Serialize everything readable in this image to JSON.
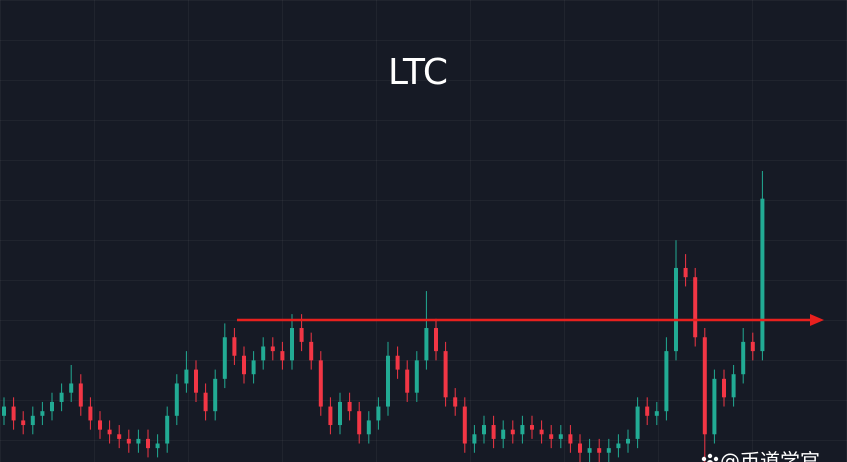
{
  "chart_data": {
    "type": "candlestick",
    "title": "LTC",
    "watermark": "@币道学官",
    "up_color": "#22ab94",
    "down_color": "#f23645",
    "ylim": [
      0,
      100
    ],
    "open": [
      10,
      12,
      9,
      8,
      10,
      11,
      13,
      15,
      17,
      12,
      9,
      7,
      6,
      5,
      4,
      5,
      3,
      4,
      10,
      17,
      20,
      15,
      11,
      18,
      27,
      23,
      19,
      22,
      25,
      24,
      22,
      29,
      26,
      22,
      12,
      8,
      13,
      11,
      6,
      9,
      12,
      23,
      20,
      15,
      22,
      29,
      24,
      14,
      12,
      4,
      6,
      8,
      5,
      7,
      6,
      8,
      7,
      6,
      5,
      6,
      4,
      2,
      3,
      2,
      3,
      4,
      5,
      12,
      10,
      11,
      24,
      42,
      40,
      27,
      6,
      18,
      14,
      19,
      26,
      24
    ],
    "high": [
      14,
      14,
      11,
      12,
      13,
      15,
      17,
      21,
      19,
      14,
      11,
      9,
      8,
      7,
      7,
      7,
      6,
      12,
      19,
      24,
      22,
      17,
      20,
      30,
      29,
      25,
      24,
      27,
      27,
      26,
      32,
      32,
      28,
      24,
      14,
      15,
      15,
      13,
      11,
      14,
      26,
      25,
      22,
      24,
      37,
      31,
      26,
      16,
      14,
      8,
      10,
      10,
      9,
      9,
      10,
      10,
      9,
      8,
      8,
      8,
      6,
      5,
      5,
      5,
      6,
      7,
      14,
      14,
      13,
      27,
      48,
      45,
      42,
      29,
      20,
      20,
      21,
      29,
      28,
      63
    ],
    "low": [
      8,
      7,
      6,
      6,
      8,
      9,
      11,
      13,
      10,
      7,
      5,
      4,
      3,
      2,
      2,
      1,
      1,
      2,
      8,
      15,
      13,
      9,
      9,
      16,
      21,
      17,
      17,
      20,
      22,
      20,
      20,
      24,
      20,
      10,
      6,
      6,
      9,
      4,
      4,
      7,
      10,
      18,
      13,
      13,
      20,
      22,
      12,
      10,
      2,
      2,
      4,
      3,
      3,
      4,
      4,
      5,
      4,
      3,
      3,
      2,
      0,
      0,
      0,
      0,
      1,
      2,
      3,
      8,
      8,
      9,
      22,
      38,
      25,
      0,
      4,
      12,
      12,
      17,
      22,
      22
    ],
    "close": [
      12,
      9,
      8,
      10,
      11,
      13,
      15,
      17,
      12,
      9,
      7,
      6,
      5,
      4,
      5,
      3,
      4,
      10,
      17,
      20,
      15,
      11,
      18,
      27,
      23,
      19,
      22,
      25,
      24,
      22,
      29,
      26,
      22,
      12,
      8,
      13,
      11,
      6,
      9,
      12,
      23,
      20,
      15,
      22,
      29,
      24,
      14,
      12,
      4,
      6,
      8,
      5,
      7,
      6,
      8,
      7,
      6,
      5,
      6,
      4,
      2,
      3,
      2,
      3,
      4,
      5,
      12,
      10,
      11,
      24,
      42,
      40,
      27,
      6,
      18,
      14,
      19,
      26,
      24,
      57
    ]
  }
}
